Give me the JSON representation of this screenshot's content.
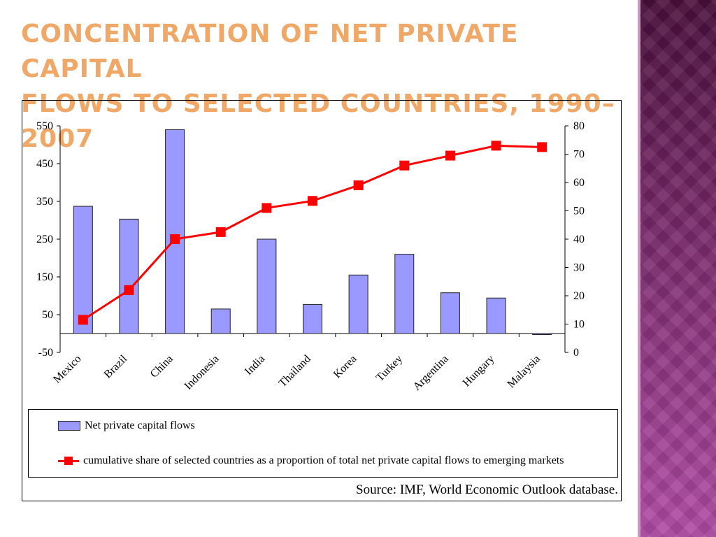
{
  "slide": {
    "title_line1": "Concentration of Net Private Capital",
    "title_line2": "Flows to Selected Countries, 1990–2007",
    "source": "Source:  IMF, World Economic Outlook database."
  },
  "colors": {
    "bar": "#9999ff",
    "line": "#ff0000",
    "title": "#f0a868"
  },
  "chart_data": {
    "type": "bar",
    "categories": [
      "Mexico",
      "Brazil",
      "China",
      "Indonesia",
      "India",
      "Thailand",
      "Korea",
      "Turkey",
      "Argentina",
      "Hungary",
      "Malaysia"
    ],
    "series": [
      {
        "name": "Net private capital flows",
        "type": "bar",
        "axis": "left",
        "values": [
          337,
          303,
          540,
          65,
          250,
          77,
          155,
          210,
          108,
          94,
          -2
        ]
      },
      {
        "name": "cumulative share of selected countries as a proportion of total net private capital flows to emerging markets",
        "type": "line",
        "axis": "right",
        "values": [
          11.5,
          22,
          40,
          42.5,
          51,
          53.5,
          59,
          66,
          69.5,
          73,
          72.5
        ]
      }
    ],
    "y_left": {
      "min": -50,
      "max": 550,
      "ticks": [
        -50,
        50,
        150,
        250,
        350,
        450,
        550
      ]
    },
    "y_right": {
      "min": 0,
      "max": 80,
      "ticks": [
        0,
        10,
        20,
        30,
        40,
        50,
        60,
        70,
        80
      ]
    },
    "legend_position": "bottom",
    "grid": false
  }
}
